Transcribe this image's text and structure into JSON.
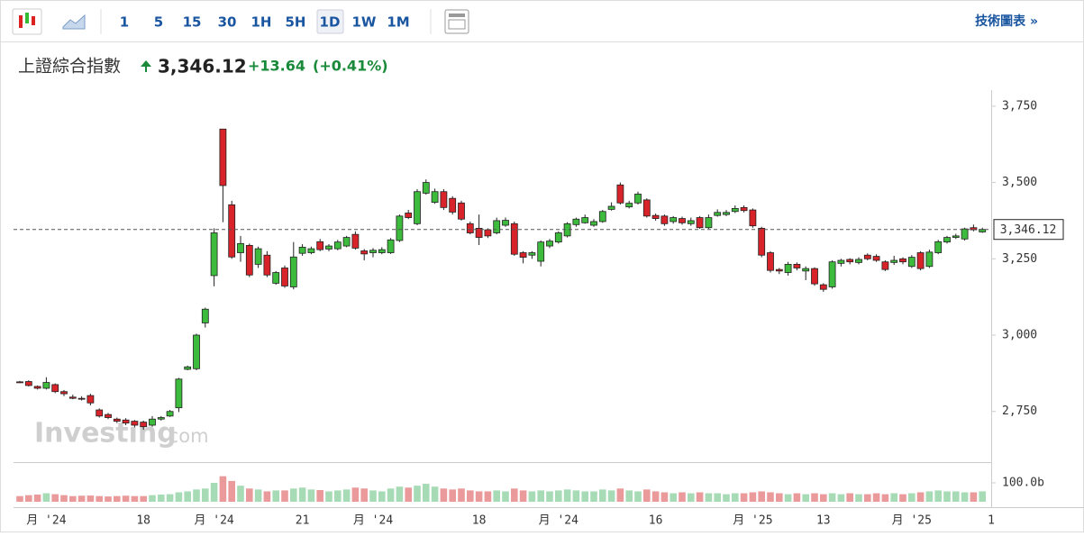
{
  "toolbar": {
    "intervals": [
      "1",
      "5",
      "15",
      "30",
      "1H",
      "5H",
      "1D",
      "1W",
      "1M"
    ],
    "active": "1D",
    "link": "技術圖表 »"
  },
  "header": {
    "name": "上證綜合指數",
    "price": "3,346.12",
    "change": "+13.64",
    "change_pct": "(+0.41%)"
  },
  "watermark": {
    "brand": "Investing",
    "suffix": ".com"
  },
  "chart_data": {
    "type": "candlestick",
    "up_color": "#3dbb3d",
    "down_color": "#d9232a",
    "volume_up_color": "#a6dbb6",
    "volume_down_color": "#ea9a9a",
    "categories": [
      null,
      null,
      null,
      "月 '24",
      null,
      null,
      null,
      null,
      null,
      null,
      null,
      null,
      null,
      null,
      "18",
      null,
      null,
      null,
      null,
      null,
      null,
      null,
      "月 '24",
      null,
      null,
      null,
      null,
      null,
      null,
      null,
      null,
      null,
      "21",
      null,
      null,
      null,
      null,
      null,
      null,
      null,
      "月 '24",
      null,
      null,
      null,
      null,
      null,
      null,
      null,
      null,
      null,
      null,
      null,
      "18",
      null,
      null,
      null,
      null,
      null,
      null,
      null,
      null,
      "月 '24",
      null,
      null,
      null,
      null,
      null,
      null,
      null,
      null,
      null,
      null,
      "16",
      null,
      null,
      null,
      null,
      null,
      null,
      null,
      null,
      null,
      null,
      "月 '25",
      null,
      null,
      null,
      null,
      null,
      null,
      null,
      "13",
      null,
      null,
      null,
      null,
      null,
      null,
      null,
      null,
      null,
      "月 '25",
      null,
      null,
      null,
      null,
      null,
      null,
      null,
      null,
      "1"
    ],
    "open": [
      2847,
      2848,
      2832,
      2826,
      2838,
      2815,
      2797,
      2793,
      2802,
      2755,
      2740,
      2725,
      2722,
      2718,
      2715,
      2705,
      2725,
      2735,
      2762,
      2888,
      2890,
      3040,
      3195,
      3675,
      3427,
      3270,
      3294,
      3232,
      3262,
      3170,
      3220,
      3158,
      3268,
      3270,
      3306,
      3282,
      3283,
      3292,
      3330,
      3276,
      3270,
      3270,
      3270,
      3310,
      3400,
      3365,
      3465,
      3435,
      3470,
      3448,
      3433,
      3365,
      3350,
      3345,
      3335,
      3360,
      3365,
      3270,
      3262,
      3242,
      3292,
      3305,
      3325,
      3362,
      3368,
      3360,
      3372,
      3412,
      3492,
      3420,
      3433,
      3443,
      3392,
      3390,
      3372,
      3382,
      3365,
      3385,
      3352,
      3392,
      3395,
      3405,
      3418,
      3410,
      3350,
      3270,
      3215,
      3205,
      3232,
      3210,
      3218,
      3165,
      3158,
      3235,
      3248,
      3238,
      3262,
      3258,
      3240,
      3238,
      3250,
      3225,
      3270,
      3225,
      3270,
      3305,
      3320,
      3315,
      3352,
      3338,
      null
    ],
    "high": [
      2850,
      2852,
      2835,
      2862,
      2842,
      2820,
      2805,
      2800,
      2808,
      2760,
      2745,
      2730,
      2728,
      2722,
      2720,
      2735,
      2735,
      2755,
      2860,
      2900,
      3005,
      3090,
      3350,
      3675,
      3440,
      3325,
      3300,
      3290,
      3275,
      3210,
      3228,
      3305,
      3298,
      3290,
      3315,
      3298,
      3312,
      3325,
      3340,
      3282,
      3285,
      3288,
      3318,
      3395,
      3410,
      3478,
      3510,
      3480,
      3478,
      3455,
      3440,
      3372,
      3395,
      3350,
      3385,
      3385,
      3372,
      3275,
      3275,
      3310,
      3315,
      3340,
      3370,
      3385,
      3395,
      3380,
      3410,
      3435,
      3500,
      3440,
      3470,
      3448,
      3398,
      3395,
      3390,
      3388,
      3385,
      3390,
      3395,
      3412,
      3410,
      3425,
      3425,
      3415,
      3355,
      3275,
      3220,
      3240,
      3238,
      3225,
      3222,
      3170,
      3245,
      3250,
      3252,
      3255,
      3268,
      3265,
      3245,
      3260,
      3255,
      3262,
      3275,
      3280,
      3312,
      3325,
      3332,
      3352,
      3362,
      3352,
      null
    ],
    "low": [
      2843,
      2832,
      2822,
      2822,
      2810,
      2800,
      2790,
      2786,
      2770,
      2730,
      2725,
      2712,
      2705,
      2698,
      2690,
      2700,
      2720,
      2732,
      2748,
      2885,
      2885,
      3025,
      3160,
      3370,
      3250,
      3240,
      3190,
      3220,
      3190,
      3165,
      3155,
      3150,
      3260,
      3265,
      3275,
      3275,
      3278,
      3288,
      3280,
      3245,
      3255,
      3265,
      3266,
      3305,
      3380,
      3360,
      3460,
      3430,
      3410,
      3395,
      3375,
      3330,
      3295,
      3318,
      3330,
      3355,
      3260,
      3235,
      3250,
      3225,
      3285,
      3300,
      3320,
      3355,
      3365,
      3355,
      3368,
      3408,
      3428,
      3415,
      3428,
      3385,
      3375,
      3358,
      3365,
      3362,
      3358,
      3348,
      3348,
      3388,
      3390,
      3400,
      3402,
      3352,
      3255,
      3205,
      3200,
      3195,
      3212,
      3180,
      3162,
      3142,
      3152,
      3225,
      3232,
      3232,
      3245,
      3240,
      3210,
      3230,
      3232,
      3220,
      3212,
      3220,
      3265,
      3300,
      3315,
      3310,
      3340,
      3335,
      null
    ],
    "close": [
      2845,
      2835,
      2826,
      2845,
      2815,
      2808,
      2793,
      2792,
      2778,
      2735,
      2730,
      2718,
      2712,
      2705,
      2700,
      2725,
      2730,
      2750,
      2856,
      2896,
      3000,
      3085,
      3335,
      3490,
      3256,
      3300,
      3197,
      3283,
      3197,
      3205,
      3161,
      3256,
      3288,
      3283,
      3280,
      3292,
      3305,
      3320,
      3285,
      3266,
      3278,
      3280,
      3312,
      3390,
      3385,
      3470,
      3500,
      3470,
      3418,
      3403,
      3380,
      3335,
      3320,
      3325,
      3375,
      3376,
      3265,
      3255,
      3270,
      3305,
      3308,
      3335,
      3365,
      3380,
      3385,
      3372,
      3405,
      3422,
      3433,
      3432,
      3462,
      3390,
      3382,
      3365,
      3385,
      3368,
      3375,
      3352,
      3385,
      3402,
      3402,
      3415,
      3408,
      3358,
      3262,
      3212,
      3210,
      3232,
      3220,
      3218,
      3168,
      3150,
      3240,
      3245,
      3240,
      3248,
      3250,
      3245,
      3215,
      3245,
      3240,
      3255,
      3218,
      3272,
      3306,
      3320,
      3325,
      3348,
      3345,
      3346.12,
      null
    ],
    "volume": [
      30,
      35,
      38,
      45,
      40,
      35,
      30,
      32,
      33,
      30,
      28,
      30,
      32,
      30,
      30,
      35,
      38,
      40,
      50,
      55,
      65,
      70,
      100,
      135,
      110,
      85,
      70,
      65,
      55,
      60,
      60,
      70,
      75,
      65,
      62,
      55,
      60,
      65,
      75,
      70,
      60,
      55,
      70,
      80,
      75,
      85,
      95,
      80,
      70,
      65,
      70,
      60,
      55,
      55,
      60,
      55,
      70,
      60,
      55,
      60,
      55,
      60,
      65,
      60,
      55,
      55,
      65,
      60,
      70,
      60,
      55,
      65,
      55,
      50,
      45,
      50,
      45,
      50,
      45,
      45,
      40,
      45,
      45,
      50,
      55,
      50,
      45,
      40,
      45,
      40,
      45,
      40,
      45,
      40,
      45,
      40,
      40,
      45,
      40,
      45,
      40,
      45,
      50,
      55,
      60,
      55,
      55,
      50,
      50,
      55,
      null
    ],
    "last_label": "3,346.12",
    "ylim": [
      2584,
      3782
    ],
    "yticks": [
      {
        "value": 2750,
        "label": "2,750"
      },
      {
        "value": 3000,
        "label": "3,000"
      },
      {
        "value": 3250,
        "label": "3,250"
      },
      {
        "value": 3500,
        "label": "3,500"
      },
      {
        "value": 3750,
        "label": "3,750"
      }
    ],
    "volume_ylim": [
      0,
      200
    ],
    "volume_ticks": [
      {
        "value": 100,
        "label": "100.0b"
      }
    ],
    "grid": false
  }
}
